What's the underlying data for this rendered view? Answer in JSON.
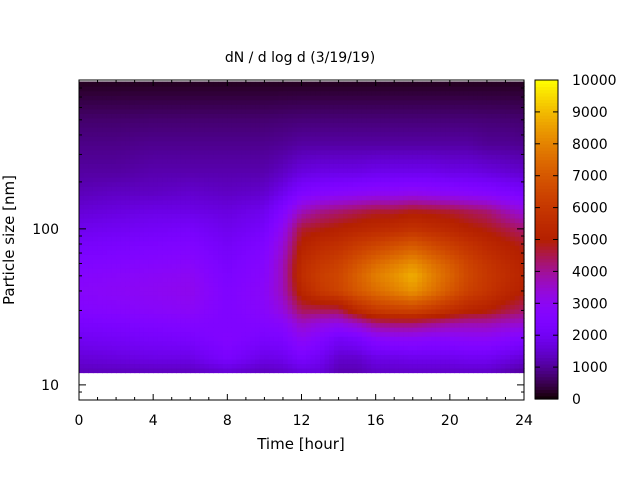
{
  "chart_data": {
    "type": "heatmap",
    "title": "dN / d log d (3/19/19)",
    "xlabel": "Time [hour]",
    "ylabel": "Particle size [nm]",
    "xlim": [
      0,
      24
    ],
    "ylim_nm": [
      8,
      900
    ],
    "yscale": "log",
    "xticks": [
      0,
      4,
      8,
      12,
      16,
      20,
      24
    ],
    "yticks": [
      10,
      100
    ],
    "colorbar": {
      "min": 0,
      "max": 10000,
      "ticks": [
        0,
        1000,
        2000,
        3000,
        4000,
        5000,
        6000,
        7000,
        8000,
        9000,
        10000
      ],
      "palette": "gnuplot pm3d (black-purple-red-orange-yellow)"
    },
    "data_extent": {
      "time_hours": [
        0,
        24
      ],
      "size_nm": [
        12,
        880
      ]
    },
    "times_hours": [
      0,
      2,
      4,
      6,
      8,
      10,
      11,
      12,
      13,
      14,
      15,
      16,
      17,
      18,
      19,
      20,
      21,
      22,
      23,
      24
    ],
    "sizes_nm": [
      12,
      15,
      20,
      25,
      30,
      40,
      50,
      60,
      80,
      100,
      130,
      170,
      230,
      350,
      500,
      880
    ],
    "values_description": "rows = sizes_nm, columns = times_hours, values in dN/dlogd",
    "values": [
      [
        1300,
        1300,
        1300,
        1300,
        1500,
        1300,
        1400,
        1600,
        1600,
        1200,
        1200,
        1400,
        1400,
        1400,
        1400,
        1400,
        1400,
        1400,
        1200,
        1000
      ],
      [
        1600,
        1700,
        1800,
        1800,
        2300,
        1800,
        1900,
        2300,
        2000,
        1500,
        1500,
        1800,
        1800,
        1900,
        1900,
        1900,
        2000,
        2000,
        1800,
        1600
      ],
      [
        2000,
        2100,
        2200,
        2300,
        2600,
        2300,
        2400,
        3000,
        2600,
        2100,
        2300,
        2800,
        2900,
        2900,
        2800,
        2800,
        2900,
        2900,
        2700,
        2500
      ],
      [
        2300,
        2400,
        2500,
        2600,
        2500,
        2600,
        2800,
        3600,
        3300,
        3200,
        3600,
        4200,
        4300,
        4300,
        4100,
        3900,
        3800,
        3800,
        3600,
        3500
      ],
      [
        2600,
        2700,
        2800,
        2900,
        2500,
        2800,
        3300,
        4400,
        4400,
        4400,
        5400,
        6000,
        6200,
        6300,
        6000,
        5600,
        5200,
        5000,
        4600,
        4300
      ],
      [
        2800,
        2900,
        3000,
        3100,
        2500,
        2900,
        3700,
        5300,
        6000,
        6400,
        7000,
        7500,
        7900,
        8300,
        7700,
        7000,
        6300,
        5900,
        5400,
        5000
      ],
      [
        2700,
        2800,
        2900,
        3000,
        2400,
        2800,
        3700,
        5600,
        6200,
        6500,
        7200,
        7900,
        8300,
        8800,
        8000,
        7300,
        6500,
        6000,
        5600,
        5200
      ],
      [
        2500,
        2600,
        2700,
        2800,
        2300,
        2700,
        3700,
        5500,
        6000,
        6300,
        6900,
        7500,
        7900,
        8300,
        7700,
        7100,
        6400,
        5900,
        5500,
        5100
      ],
      [
        2200,
        2300,
        2400,
        2500,
        2100,
        2500,
        3400,
        5100,
        5500,
        5700,
        6100,
        6400,
        6700,
        7000,
        6600,
        6200,
        5800,
        5400,
        5100,
        4800
      ],
      [
        1900,
        2000,
        2100,
        2200,
        1900,
        2200,
        3100,
        4700,
        4900,
        5100,
        5300,
        5500,
        5600,
        5800,
        5600,
        5400,
        5100,
        4900,
        4600,
        4300
      ],
      [
        1600,
        1700,
        1800,
        1800,
        1700,
        1900,
        2600,
        3700,
        4100,
        4300,
        4500,
        4700,
        4700,
        4900,
        4800,
        4700,
        4500,
        4300,
        3800,
        3400
      ],
      [
        1300,
        1400,
        1400,
        1500,
        1400,
        1500,
        1900,
        2500,
        2700,
        2800,
        2900,
        3000,
        3000,
        3100,
        3000,
        2900,
        2800,
        2700,
        2500,
        2300
      ],
      [
        1100,
        1100,
        1200,
        1200,
        1200,
        1200,
        1400,
        1700,
        1800,
        1800,
        1800,
        1900,
        1900,
        1900,
        1900,
        1800,
        1800,
        1700,
        1600,
        1500
      ],
      [
        900,
        900,
        950,
        950,
        950,
        950,
        1000,
        1100,
        1100,
        1100,
        1100,
        1100,
        1100,
        1100,
        1100,
        1100,
        1100,
        1000,
        1000,
        950
      ],
      [
        700,
        700,
        720,
        720,
        720,
        720,
        750,
        780,
        780,
        780,
        780,
        780,
        780,
        780,
        780,
        780,
        780,
        760,
        750,
        720
      ],
      [
        200,
        200,
        200,
        200,
        200,
        200,
        200,
        200,
        200,
        200,
        200,
        200,
        200,
        200,
        200,
        200,
        200,
        200,
        200,
        200
      ]
    ]
  }
}
